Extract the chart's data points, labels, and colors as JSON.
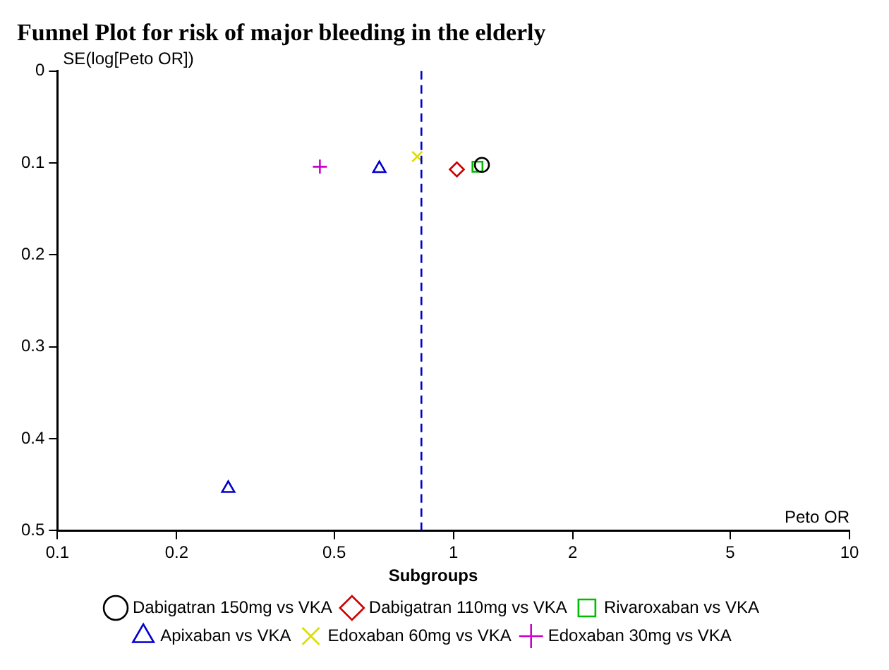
{
  "chart_data": {
    "type": "scatter",
    "title": "Funnel Plot for risk of major bleeding in the elderly",
    "xlabel": "Peto OR",
    "ylabel": "SE(log[Peto OR])",
    "legend_title": "Subgroups",
    "log": "x",
    "xlim": [
      0.1,
      10
    ],
    "xticks": [
      0.1,
      0.2,
      0.5,
      1,
      2,
      5,
      10
    ],
    "ylim": [
      0.5,
      0
    ],
    "yticks": [
      0,
      0.1,
      0.2,
      0.3,
      0.4,
      0.5
    ],
    "grid": false,
    "legend": "bottom",
    "ref_lines": [
      {
        "axis": "x",
        "value": 0.83,
        "color": "#0000cc",
        "line_style": "dashed"
      }
    ],
    "series": [
      {
        "name": "Dabigatran 150mg vs VKA",
        "color": "#000000",
        "marker": "circle",
        "x": [
          1.18
        ],
        "values": [
          0.102
        ]
      },
      {
        "name": "Dabigatran 110mg vs VKA",
        "color": "#cc0000",
        "marker": "diamond",
        "x": [
          1.02
        ],
        "values": [
          0.107
        ]
      },
      {
        "name": "Rivaroxaban vs VKA",
        "color": "#00bb00",
        "marker": "square",
        "x": [
          1.15
        ],
        "values": [
          0.104
        ]
      },
      {
        "name": "Apixaban vs VKA",
        "color": "#0000cc",
        "marker": "triangle",
        "x": [
          0.65,
          0.27
        ],
        "values": [
          0.106,
          0.454
        ]
      },
      {
        "name": "Edoxaban 60mg vs VKA",
        "color": "#dddd00",
        "marker": "cross",
        "x": [
          0.81
        ],
        "values": [
          0.093
        ]
      },
      {
        "name": "Edoxaban 30mg vs VKA",
        "color": "#cc00cc",
        "marker": "plus",
        "x": [
          0.46
        ],
        "values": [
          0.104
        ]
      }
    ]
  }
}
